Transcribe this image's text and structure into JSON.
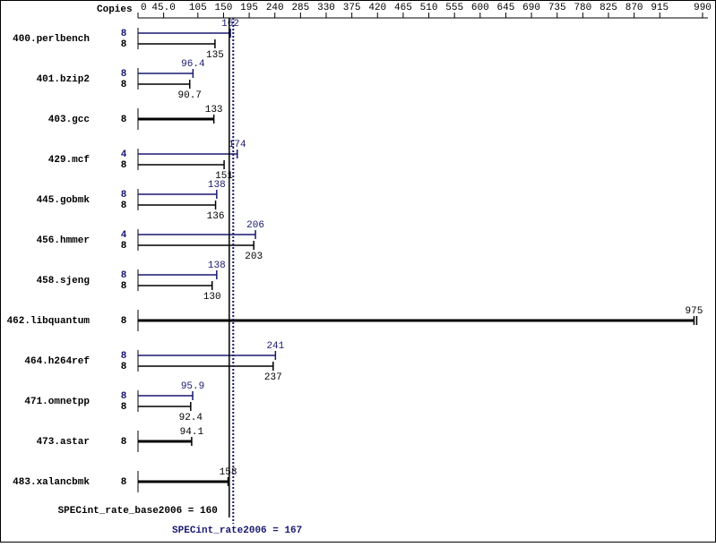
{
  "chart_data": {
    "type": "bar",
    "orientation": "horizontal",
    "copies_label": "Copies",
    "categories": [
      "400.perlbench",
      "401.bzip2",
      "403.gcc",
      "429.mcf",
      "445.gobmk",
      "456.hmmer",
      "458.sjeng",
      "462.libquantum",
      "464.h264ref",
      "471.omnetpp",
      "473.astar",
      "483.xalancbmk"
    ],
    "series": [
      {
        "color": "#191970",
        "copies": [
          8,
          8,
          null,
          4,
          8,
          4,
          8,
          null,
          8,
          8,
          null,
          null
        ],
        "values": [
          162,
          96.4,
          null,
          174,
          138,
          206,
          138,
          null,
          241,
          95.9,
          null,
          null
        ]
      },
      {
        "color": "#000000",
        "copies": [
          8,
          8,
          8,
          8,
          8,
          8,
          8,
          8,
          8,
          8,
          8,
          8
        ],
        "values": [
          135,
          90.7,
          133,
          151,
          136,
          203,
          130,
          975,
          237,
          92.4,
          94.1,
          158
        ]
      }
    ],
    "xlim": [
      0,
      990
    ],
    "xticks": [
      0,
      {
        "value": 45,
        "label": "45.0"
      },
      105,
      150,
      195,
      240,
      285,
      330,
      375,
      420,
      465,
      510,
      555,
      600,
      645,
      690,
      735,
      780,
      825,
      870,
      915,
      990
    ],
    "reference_lines": [
      {
        "value": 160,
        "label": "SPECint_rate_base2006 = 160",
        "color": "#000000",
        "style": "solid"
      },
      {
        "value": 167,
        "label": "SPECint_rate2006 = 167",
        "color": "#191970",
        "style": "dotted"
      }
    ]
  }
}
